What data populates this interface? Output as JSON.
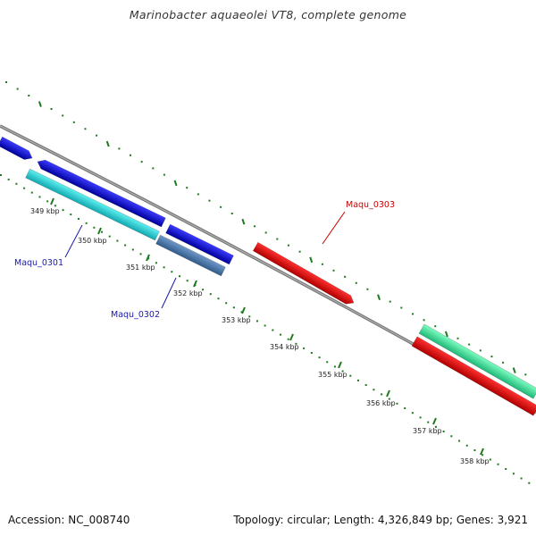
{
  "title": "Marinobacter aquaeolei VT8, complete genome",
  "footer": {
    "accession": "Accession: NC_008740",
    "summary": "Topology: circular; Length: 4,326,849 bp; Genes: 3,921"
  },
  "colors": {
    "backbone": "#7a7a7a",
    "tick": "#1f7a1f",
    "label_blue": "#1a1aa8",
    "label_red": "#cc0000"
  },
  "scale_labels": [
    "349 kbp",
    "350 kbp",
    "351 kbp",
    "352 kbp",
    "353 kbp",
    "354 kbp",
    "355 kbp",
    "356 kbp",
    "357 kbp",
    "358 kbp"
  ],
  "genes": [
    {
      "label": "Maqu_0301",
      "color": "cyan",
      "strand": "+"
    },
    {
      "label": "Maqu_0302",
      "color": "steelblue",
      "strand": "+"
    },
    {
      "label": "Maqu_0303",
      "color": "red",
      "strand": "-"
    }
  ]
}
